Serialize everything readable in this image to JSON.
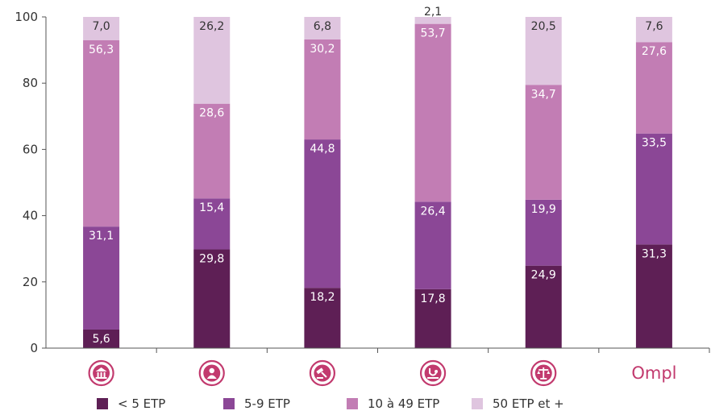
{
  "chart_data": {
    "type": "bar",
    "stacked": true,
    "categories": [
      "bank-building-icon",
      "person-icon",
      "gavel-icon",
      "stethoscope-icon",
      "scales-icon",
      "Ompl"
    ],
    "ylim": [
      0,
      100
    ],
    "yticks": [
      0,
      20,
      40,
      60,
      80,
      100
    ],
    "grid": false,
    "legend_position": "bottom",
    "series": [
      {
        "name": "< 5 ETP",
        "color": "#5e1f55",
        "label_color": "#ffffff",
        "values": [
          5.6,
          29.8,
          18.2,
          17.8,
          24.9,
          31.3
        ]
      },
      {
        "name": "5-9 ETP",
        "color": "#8b4796",
        "label_color": "#ffffff",
        "values": [
          31.1,
          15.4,
          44.8,
          26.4,
          19.9,
          33.5
        ]
      },
      {
        "name": "10 à 49 ETP",
        "color": "#c27db4",
        "label_color": "#ffffff",
        "values": [
          56.3,
          28.6,
          30.2,
          53.7,
          34.7,
          27.6
        ]
      },
      {
        "name": "50 ETP et +",
        "color": "#dfc5df",
        "label_color": "#333333",
        "values": [
          7.0,
          26.2,
          6.8,
          2.1,
          20.5,
          7.6
        ]
      }
    ],
    "labels": [
      [
        "5,6",
        "29,8",
        "18,2",
        "17,8",
        "24,9",
        "31,3"
      ],
      [
        "31,1",
        "15,4",
        "44,8",
        "26,4",
        "19,9",
        "33,5"
      ],
      [
        "56,3",
        "28,6",
        "30,2",
        "53,7",
        "34,7",
        "27,6"
      ],
      [
        "7,0",
        "26,2",
        "6,8",
        "2,1",
        "20,5",
        "7,6"
      ]
    ],
    "category_icons": [
      "bank-building-icon",
      "person-icon",
      "gavel-icon",
      "stethoscope-icon",
      "scales-icon",
      "ompl-logo"
    ],
    "logo_text": "Ompl",
    "icon_color": "#c23a6e"
  }
}
